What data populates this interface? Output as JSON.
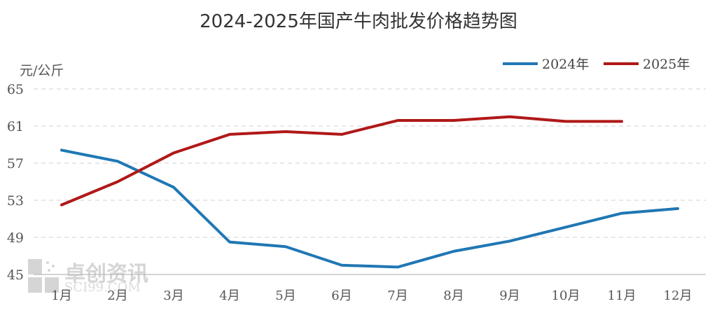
{
  "chart_data": {
    "type": "line",
    "title": "2024-2025年国产牛肉批发价格趋势图",
    "ylabel": "元/公斤",
    "xlabel": "",
    "categories": [
      "1月",
      "2月",
      "3月",
      "4月",
      "5月",
      "6月",
      "7月",
      "8月",
      "9月",
      "10月",
      "11月",
      "12月"
    ],
    "yticks": [
      45,
      49,
      53,
      57,
      61,
      65
    ],
    "ylim": [
      45,
      65
    ],
    "grid": "horizontal dashed",
    "legend": "top-right",
    "series": [
      {
        "name": "2024年",
        "color": "#1f77b4",
        "values": [
          58.4,
          57.2,
          54.4,
          48.5,
          48.0,
          46.0,
          45.8,
          47.5,
          48.6,
          50.1,
          51.6,
          52.1
        ]
      },
      {
        "name": "2025年",
        "color": "#b01818",
        "values": [
          52.5,
          55.0,
          58.1,
          60.1,
          60.4,
          60.1,
          61.6,
          61.6,
          62.0,
          61.5,
          61.5,
          null
        ]
      }
    ]
  },
  "watermark": {
    "text": "卓创资讯",
    "sub": "SCI99.COM"
  }
}
